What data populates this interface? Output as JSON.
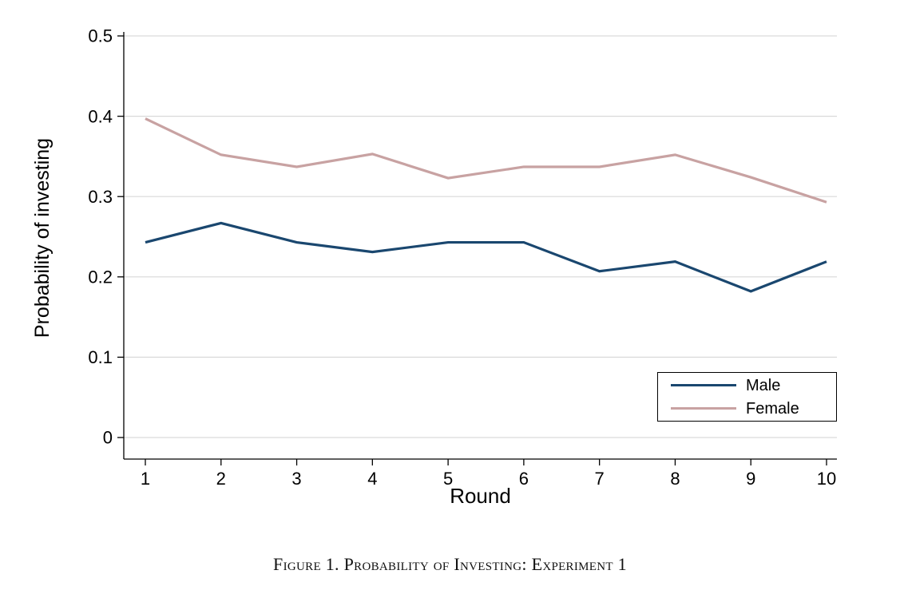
{
  "caption": "Figure 1. Probability of Investing: Experiment 1",
  "chart_data": {
    "type": "line",
    "title": "",
    "xlabel": "Round",
    "ylabel": "Probability of investing",
    "x": [
      1,
      2,
      3,
      4,
      5,
      6,
      7,
      8,
      9,
      10
    ],
    "ylim": [
      0,
      0.5
    ],
    "yticks": [
      0,
      0.1,
      0.2,
      0.3,
      0.4,
      0.5
    ],
    "ytick_labels": [
      "0",
      "0.1",
      "0.2",
      "0.3",
      "0.4",
      "0.5"
    ],
    "grid": true,
    "legend_position": "inside-bottom-right",
    "series": [
      {
        "name": "Male",
        "color": "#1a476f",
        "values": [
          0.243,
          0.267,
          0.243,
          0.231,
          0.243,
          0.243,
          0.207,
          0.219,
          0.182,
          0.219
        ]
      },
      {
        "name": "Female",
        "color": "#c8a2a2",
        "values": [
          0.397,
          0.352,
          0.337,
          0.353,
          0.323,
          0.337,
          0.337,
          0.352,
          0.324,
          0.293
        ]
      }
    ]
  }
}
